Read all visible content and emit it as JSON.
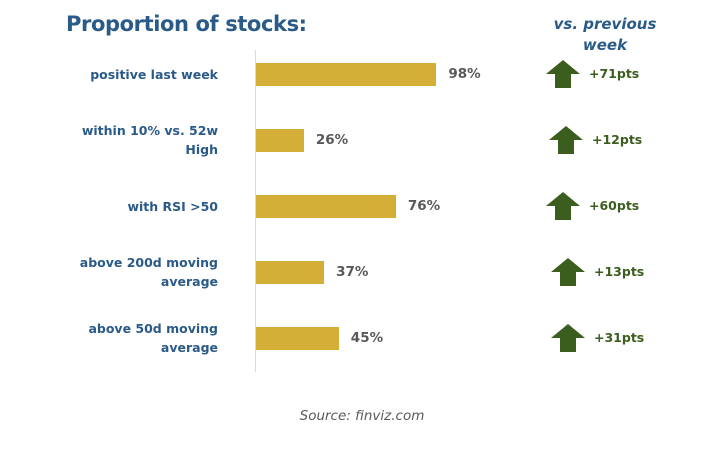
{
  "title": "Proportion of stocks:",
  "change_header": "vs. previous week",
  "source": "Source: finviz.com",
  "colors": {
    "bar": "#d4af37",
    "arrow": "#3b5e1f",
    "label": "#2a5a88",
    "value": "#595959"
  },
  "chart_data": {
    "type": "bar",
    "orientation": "horizontal",
    "title": "Proportion of stocks:",
    "categories": [
      "positive last week",
      "within 10% vs. 52w High",
      "with RSI >50",
      "above 200d moving average",
      "above 50d moving average"
    ],
    "values": [
      98,
      26,
      76,
      37,
      45
    ],
    "value_labels": [
      "98%",
      "26%",
      "76%",
      "37%",
      "45%"
    ],
    "xlim": [
      0,
      100
    ],
    "grid": false,
    "change_vs_previous_week": {
      "labels": [
        "+71pts",
        "+12pts",
        "+60pts",
        "+13pts",
        "+31pts"
      ],
      "direction": [
        "up",
        "up",
        "up",
        "up",
        "up"
      ],
      "icon": "up-arrow-icon"
    }
  }
}
